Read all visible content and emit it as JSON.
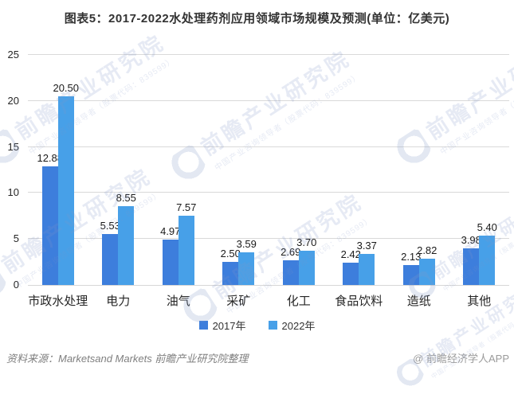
{
  "header": {
    "title": "图表5：2017-2022水处理药剂应用领域市场规模及预测(单位：亿美元)"
  },
  "chart_data": {
    "type": "bar",
    "title": "图表5：2017-2022水处理药剂应用领域市场规模及预测(单位：亿美元)",
    "unit": "亿美元",
    "categories": [
      "市政水处理",
      "电力",
      "油气",
      "采矿",
      "化工",
      "食品饮料",
      "造纸",
      "其他"
    ],
    "series": [
      {
        "name": "2017年",
        "color": "#3d7edc",
        "values": [
          12.88,
          5.53,
          4.97,
          2.5,
          2.69,
          2.42,
          2.13,
          3.98
        ]
      },
      {
        "name": "2022年",
        "color": "#47a0e8",
        "values": [
          20.5,
          8.55,
          7.57,
          3.59,
          3.7,
          3.37,
          2.82,
          5.4
        ]
      }
    ],
    "ylim": [
      0,
      25
    ],
    "yticks": [
      0,
      5,
      10,
      15,
      20,
      25
    ],
    "grid": true,
    "legend_position": "bottom",
    "value_label_decimals": 2
  },
  "footer": {
    "source": "资料来源：Marketsand Markets 前瞻产业研究院整理",
    "credit": "@ 前瞻经济学人APP"
  },
  "watermark": {
    "brand": "前瞻产业研究院",
    "tagline": "中国产业咨询领导者（股票代码：839599）"
  },
  "colors": {
    "series_2017": "#3d7edc",
    "series_2022": "#47a0e8",
    "gridline": "#d9d9d9",
    "title_text": "#333333",
    "label_text": "#1a1a1a",
    "footer_source_text": "#7f7f7f",
    "footer_credit_text": "#9b9b9b",
    "watermark": "#8098c6"
  }
}
